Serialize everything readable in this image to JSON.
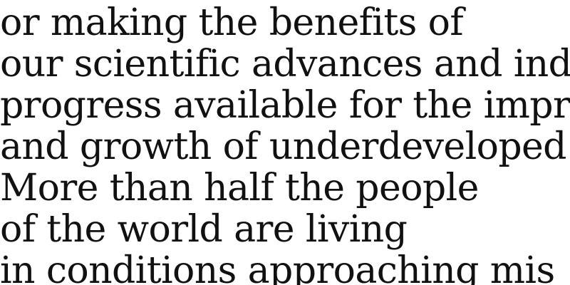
{
  "document": {
    "lines": [
      "or making the benefits of",
      "our scientific advances and ind",
      "progress available for the impr",
      "and growth of underdeveloped",
      "More than half the people",
      "of the world are living",
      "in conditions approaching mis"
    ]
  },
  "colors": {
    "text": "#111111",
    "background": "#ffffff"
  }
}
